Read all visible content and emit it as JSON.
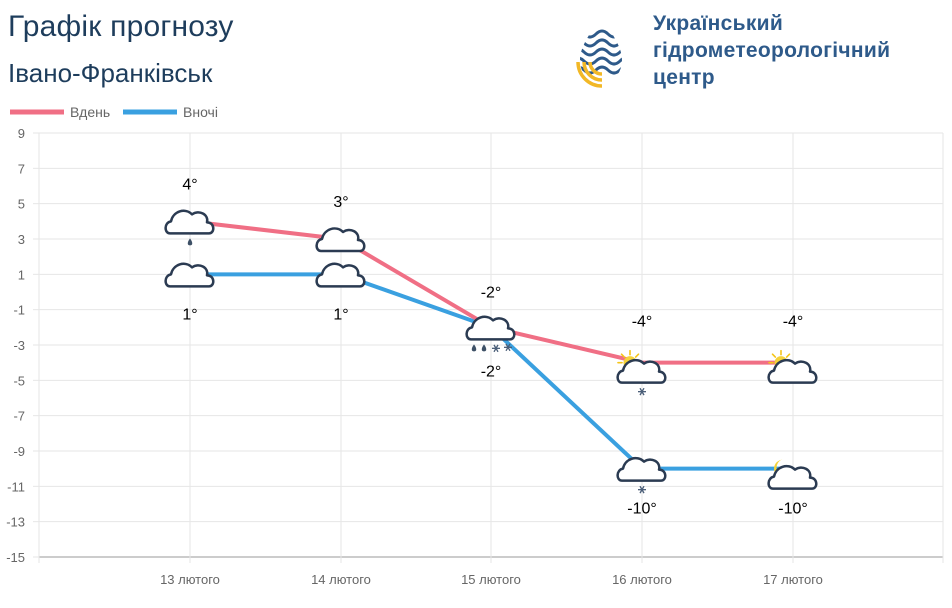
{
  "header": {
    "title": "Графік прогнозу",
    "city": "Івано-Франківськ",
    "org_lines": [
      "Український",
      "гідрометеорологічний",
      "центр"
    ]
  },
  "colors": {
    "day": "#f06f85",
    "night": "#3aa0e0",
    "grid": "#e6e6e6",
    "axis": "#999999"
  },
  "chart_data": {
    "type": "line",
    "categories": [
      "13 лютого",
      "14 лютого",
      "15 лютого",
      "16 лютого",
      "17 лютого"
    ],
    "series": [
      {
        "name": "Вдень",
        "values": [
          4,
          3,
          -2,
          -4,
          -4
        ],
        "labels": [
          "4°",
          "3°",
          "-2°",
          "-4°",
          "-4°"
        ],
        "icons": [
          "cloud-rain",
          "cloud",
          "cloud-rain-snow",
          "sun-cloud-snow",
          "sun-cloud"
        ]
      },
      {
        "name": "Вночі",
        "values": [
          1,
          1,
          -2,
          -10,
          -10
        ],
        "labels": [
          "1°",
          "1°",
          "-2°",
          "-10°",
          "-10°"
        ],
        "icons": [
          "cloud",
          "cloud",
          "",
          "cloud-snow",
          "moon-cloud"
        ]
      }
    ],
    "yticks": [
      9,
      7,
      5,
      3,
      1,
      -1,
      -3,
      -5,
      -7,
      -9,
      -11,
      -13,
      -15
    ],
    "ylim": [
      -15,
      9
    ],
    "grid": true,
    "legend": "top-left"
  }
}
